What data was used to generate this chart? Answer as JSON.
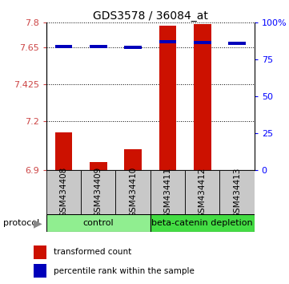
{
  "title": "GDS3578 / 36084_at",
  "samples": [
    "GSM434408",
    "GSM434409",
    "GSM434410",
    "GSM434411",
    "GSM434412",
    "GSM434413"
  ],
  "red_values": [
    7.13,
    6.95,
    7.03,
    7.78,
    7.79,
    6.9
  ],
  "blue_values": [
    7.655,
    7.655,
    7.648,
    7.685,
    7.678,
    7.676
  ],
  "ylim_left": [
    6.9,
    7.8
  ],
  "yticks_left": [
    6.9,
    7.2,
    7.425,
    7.65,
    7.8
  ],
  "ytick_labels_left": [
    "6.9",
    "7.2",
    "7.425",
    "7.65",
    "7.8"
  ],
  "ylim_right": [
    0,
    100
  ],
  "yticks_right": [
    0,
    25,
    50,
    75,
    100
  ],
  "ytick_labels_right": [
    "0",
    "25",
    "50",
    "75",
    "100%"
  ],
  "control_color": "#90EE90",
  "depletion_color": "#44DD44",
  "bar_color_red": "#CC1100",
  "bar_color_blue": "#0000BB",
  "bar_width": 0.5,
  "sample_box_color": "#C8C8C8",
  "legend_red": "transformed count",
  "legend_blue": "percentile rank within the sample",
  "protocol_label": "protocol",
  "title_fontsize": 10,
  "tick_fontsize": 8,
  "label_fontsize": 7.5,
  "legend_fontsize": 7.5,
  "prot_fontsize": 8
}
